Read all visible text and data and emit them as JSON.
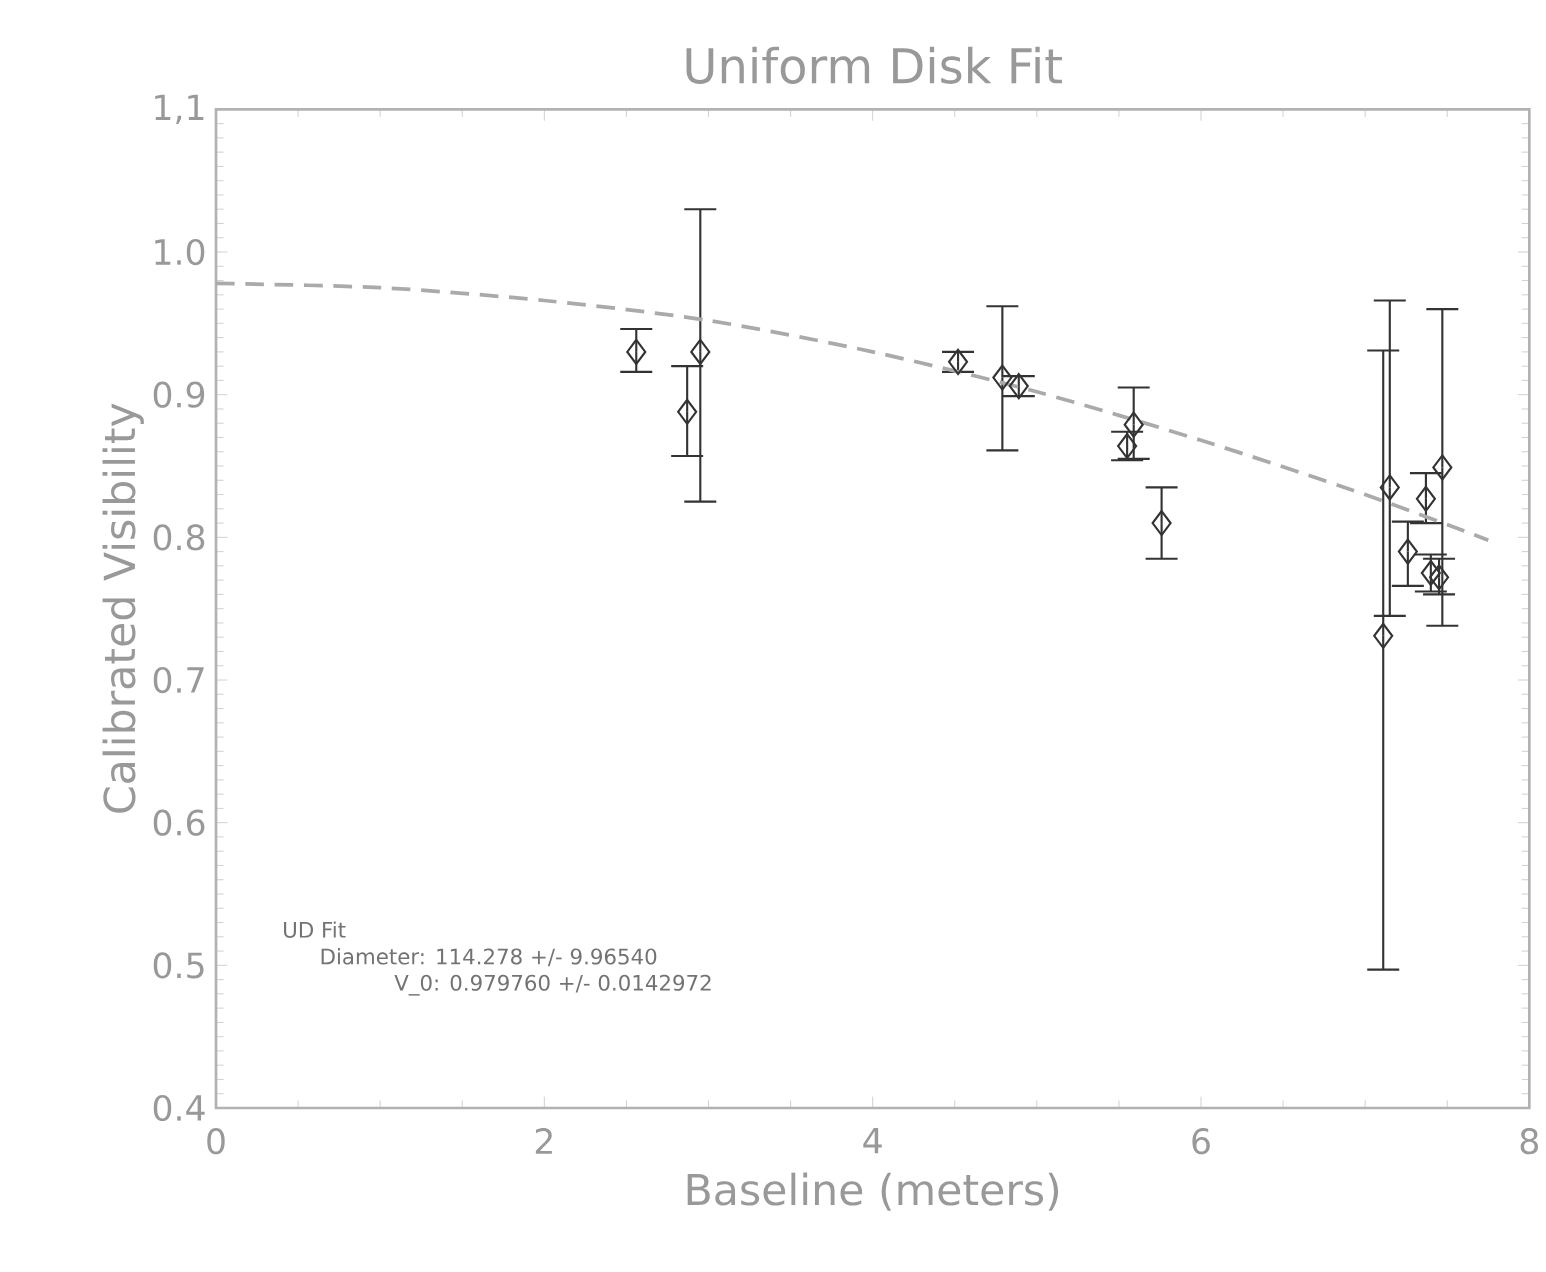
{
  "chart_data": {
    "type": "scatter",
    "title": "Uniform Disk Fit",
    "xlabel": "Baseline (meters)",
    "ylabel": "Calibrated Visibility",
    "xlim": [
      0,
      8
    ],
    "xticks": [
      0,
      2,
      4,
      6,
      8
    ],
    "ylim": [
      0.4,
      1.1
    ],
    "yticks": [
      {
        "value": 0.4,
        "label": "0.4"
      },
      {
        "value": 0.5,
        "label": "0.5"
      },
      {
        "value": 0.6,
        "label": "0.6"
      },
      {
        "value": 0.7,
        "label": "0.7"
      },
      {
        "value": 0.8,
        "label": "0.8"
      },
      {
        "value": 0.9,
        "label": "0.9"
      },
      {
        "value": 1.0,
        "label": "1.0"
      },
      {
        "value": 1.1,
        "label": "1,1"
      }
    ],
    "grid": false,
    "series": [
      {
        "color": "#333333",
        "marker": "diamond",
        "x": [
          2.56,
          2.87,
          2.95,
          4.52,
          4.79,
          4.89,
          5.55,
          5.59,
          5.76,
          7.15,
          7.11,
          7.26,
          7.37,
          7.4,
          7.45,
          7.47
        ],
        "values": [
          0.93,
          0.888,
          0.93,
          0.923,
          0.912,
          0.906,
          0.864,
          0.879,
          0.81,
          0.835,
          0.731,
          0.79,
          0.827,
          0.775,
          0.772,
          0.849
        ],
        "errors": [
          [
            0.916,
            0.946
          ],
          [
            0.857,
            0.92
          ],
          [
            0.825,
            1.03
          ],
          [
            0.916,
            0.93
          ],
          [
            0.861,
            0.962
          ],
          [
            0.899,
            0.913
          ],
          [
            0.854,
            0.874
          ],
          [
            0.855,
            0.905
          ],
          [
            0.785,
            0.835
          ],
          [
            0.745,
            0.966
          ],
          [
            0.497,
            0.931
          ],
          [
            0.766,
            0.811
          ],
          [
            0.81,
            0.845
          ],
          [
            0.762,
            0.788
          ],
          [
            0.76,
            0.785
          ],
          [
            0.738,
            0.96
          ]
        ]
      },
      {
        "type": "line",
        "color": "#aaaaaa",
        "line_style": "dashed",
        "marker": "none",
        "x": [
          0,
          1,
          2,
          3,
          4,
          5,
          6,
          7,
          7.75
        ],
        "values": [
          0.978,
          0.975,
          0.966,
          0.952,
          0.93,
          0.902,
          0.868,
          0.83,
          0.798
        ]
      }
    ],
    "annotations": [
      "UD Fit",
      "Diameter: 114.278 +/- 9.96540",
      "V_0: 0.979760 +/- 0.0142972"
    ]
  }
}
